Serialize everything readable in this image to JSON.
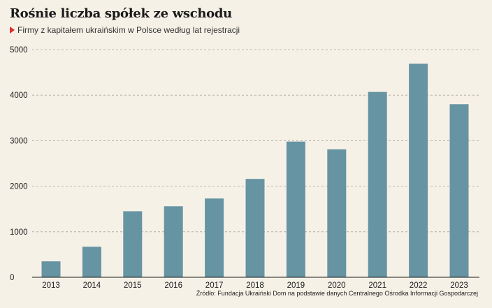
{
  "title": "Rośnie liczba spółek ze wschodu",
  "subtitle": "Firmy z kapitałem ukraińskim w Polsce według lat rejestracji",
  "source": "Źródło: Fundacja Ukraiński Dom na podstawie danych Centralnego Ośrodka Informacji Gospodarczej",
  "colors": {
    "bar": "#6694a3",
    "marker": "#d9302c",
    "background": "#f6f1e7"
  },
  "chart_data": {
    "type": "bar",
    "title": "Rośnie liczba spółek ze wschodu",
    "subtitle": "Firmy z kapitałem ukraińskim w Polsce według lat rejestracji",
    "xlabel": "",
    "ylabel": "",
    "categories": [
      "2013",
      "2014",
      "2015",
      "2016",
      "2017",
      "2018",
      "2019",
      "2020",
      "2021",
      "2022",
      "2023"
    ],
    "values": [
      350,
      670,
      1450,
      1560,
      1730,
      2160,
      2980,
      2810,
      4070,
      4690,
      3800
    ],
    "ylim": [
      0,
      5000
    ],
    "yticks": [
      "0",
      "1000",
      "2000",
      "3000",
      "4000",
      "5000"
    ],
    "grid": true,
    "legend": "none"
  }
}
